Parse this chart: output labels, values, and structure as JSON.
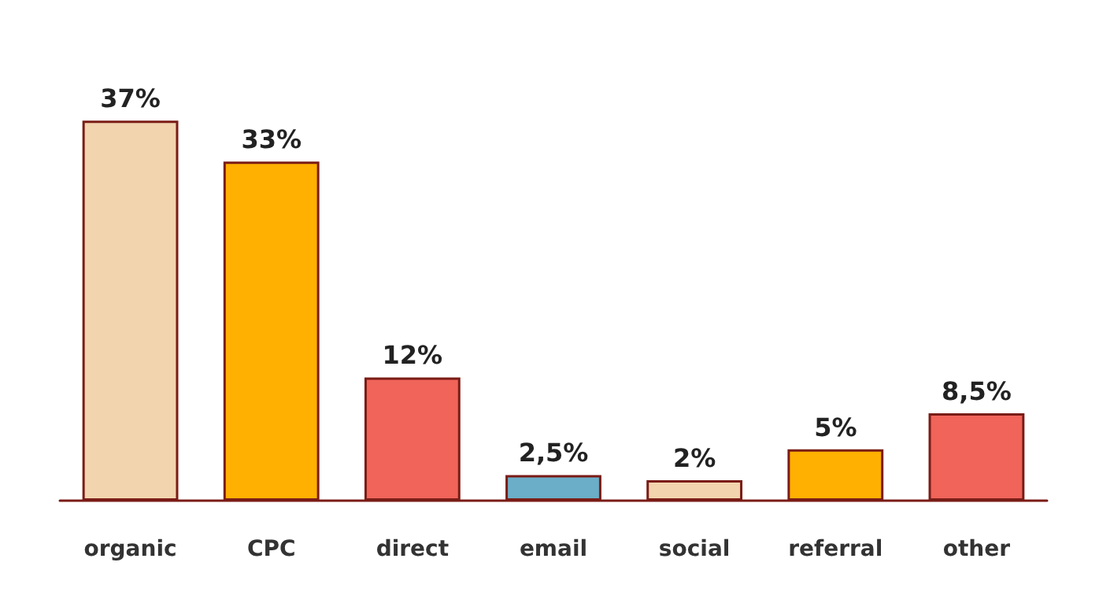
{
  "chart_data": {
    "type": "bar",
    "categories": [
      "organic",
      "CPC",
      "direct",
      "email",
      "social",
      "referral",
      "other"
    ],
    "values": [
      37,
      33,
      12,
      2.5,
      2,
      5,
      8.5
    ],
    "value_labels": [
      "37%",
      "33%",
      "12%",
      "2,5%",
      "2%",
      "5%",
      "8,5%"
    ],
    "colors": [
      "#f2d4ae",
      "#ffb000",
      "#f0645a",
      "#6aaec8",
      "#f2d4ae",
      "#ffb000",
      "#f0645a"
    ]
  }
}
